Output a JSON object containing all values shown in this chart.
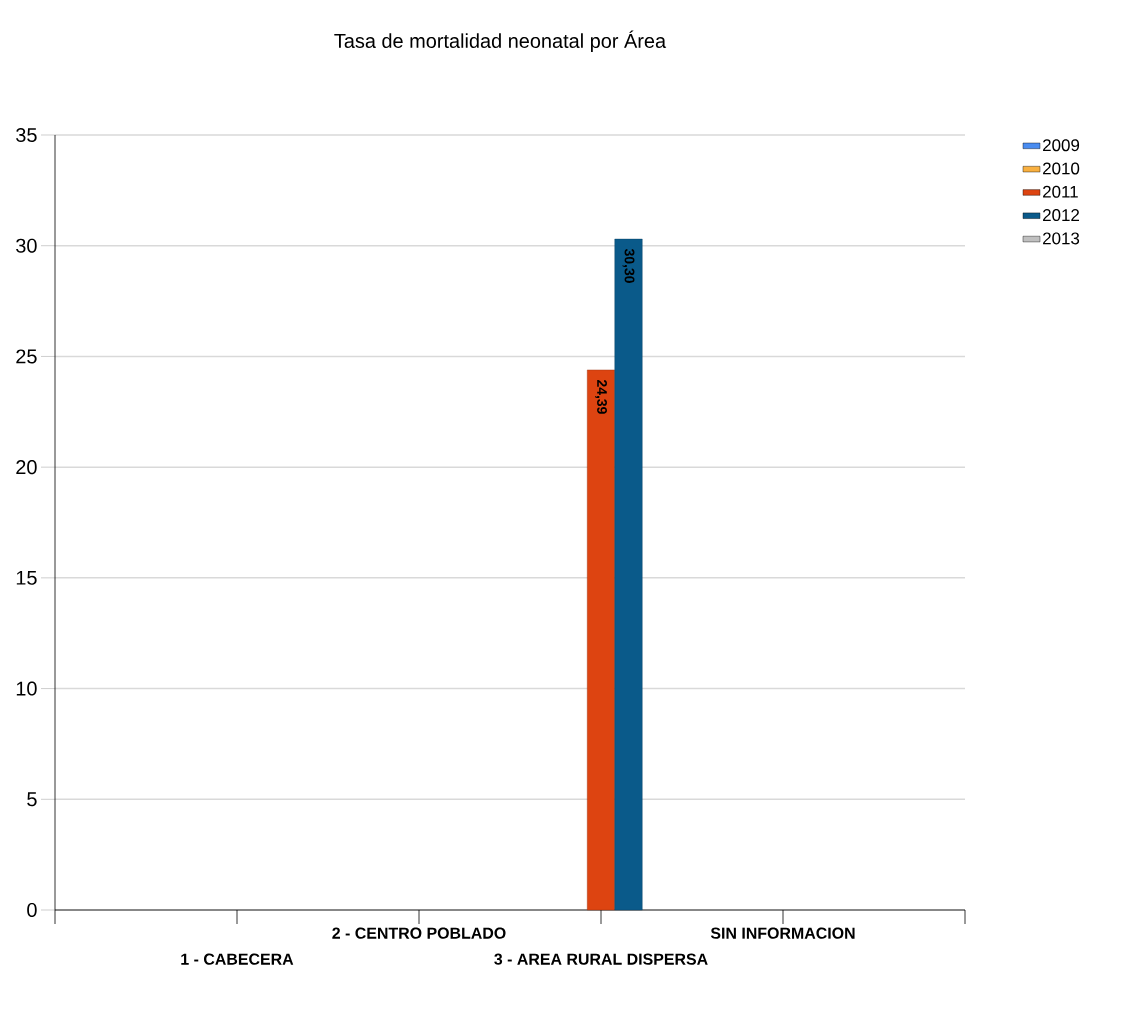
{
  "chart_data": {
    "type": "bar",
    "title": "Tasa de mortalidad neonatal por Área",
    "categories": [
      "1 - CABECERA",
      "2 - CENTRO POBLADO",
      "3 - AREA RURAL DISPERSA",
      "SIN INFORMACION"
    ],
    "series": [
      {
        "name": "2009",
        "color": "#4a8cf0",
        "values": [
          null,
          null,
          null,
          null
        ]
      },
      {
        "name": "2010",
        "color": "#f9b040",
        "values": [
          null,
          null,
          null,
          null
        ]
      },
      {
        "name": "2011",
        "color": "#dd4411",
        "values": [
          null,
          null,
          24.39,
          null
        ],
        "value_labels": [
          null,
          null,
          "24,39",
          null
        ]
      },
      {
        "name": "2012",
        "color": "#0a5a8a",
        "values": [
          null,
          null,
          30.3,
          null
        ],
        "value_labels": [
          null,
          null,
          "30,30",
          null
        ]
      },
      {
        "name": "2013",
        "color": "#c0c0c0",
        "values": [
          null,
          null,
          null,
          null
        ]
      }
    ],
    "ylim": [
      0,
      35
    ],
    "yticks": [
      0,
      5,
      10,
      15,
      20,
      25,
      30,
      35
    ],
    "grid": "y",
    "legend": "top right"
  }
}
